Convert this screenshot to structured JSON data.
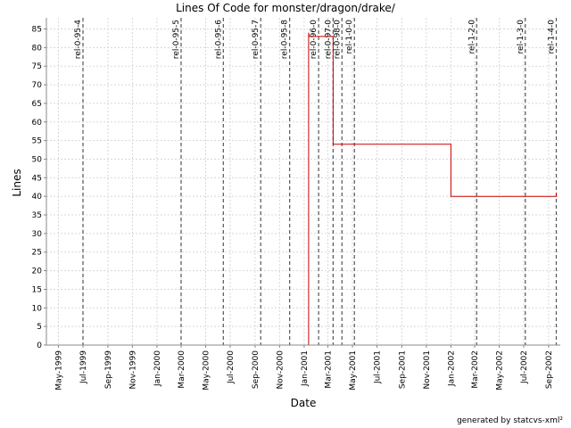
{
  "chart_data": {
    "type": "line",
    "title": "Lines Of Code for monster/dragon/drake/",
    "xlabel": "Date",
    "ylabel": "Lines",
    "ylim": [
      0,
      88
    ],
    "yticks": [
      0,
      5,
      10,
      15,
      20,
      25,
      30,
      35,
      40,
      45,
      50,
      55,
      60,
      65,
      70,
      75,
      80,
      85
    ],
    "xlim": [
      "1999-04-01",
      "2002-09-30"
    ],
    "xticks": [
      {
        "label": "May-1999",
        "date": "1999-05-01"
      },
      {
        "label": "Jul-1999",
        "date": "1999-07-01"
      },
      {
        "label": "Sep-1999",
        "date": "1999-09-01"
      },
      {
        "label": "Nov-1999",
        "date": "1999-11-01"
      },
      {
        "label": "Jan-2000",
        "date": "2000-01-01"
      },
      {
        "label": "Mar-2000",
        "date": "2000-03-01"
      },
      {
        "label": "May-2000",
        "date": "2000-05-01"
      },
      {
        "label": "Jul-2000",
        "date": "2000-07-01"
      },
      {
        "label": "Sep-2000",
        "date": "2000-09-01"
      },
      {
        "label": "Nov-2000",
        "date": "2000-11-01"
      },
      {
        "label": "Jan-2001",
        "date": "2001-01-01"
      },
      {
        "label": "Mar-2001",
        "date": "2001-03-01"
      },
      {
        "label": "May-2001",
        "date": "2001-05-01"
      },
      {
        "label": "Jul-2001",
        "date": "2001-07-01"
      },
      {
        "label": "Sep-2001",
        "date": "2001-09-01"
      },
      {
        "label": "Nov-2001",
        "date": "2001-11-01"
      },
      {
        "label": "Jan-2002",
        "date": "2002-01-01"
      },
      {
        "label": "Mar-2002",
        "date": "2002-03-01"
      },
      {
        "label": "May-2002",
        "date": "2002-05-01"
      },
      {
        "label": "Jul-2002",
        "date": "2002-07-01"
      },
      {
        "label": "Sep-2002",
        "date": "2002-09-01"
      }
    ],
    "grid": true,
    "series": [
      {
        "color": "#cc0000",
        "step": true,
        "points": [
          {
            "x": "1999-04-01",
            "y": 0
          },
          {
            "x": "2001-01-12",
            "y": 0
          },
          {
            "x": "2001-01-12",
            "y": 84
          },
          {
            "x": "2001-01-13",
            "y": 83
          },
          {
            "x": "2001-03-14",
            "y": 83
          },
          {
            "x": "2001-03-14",
            "y": 54
          },
          {
            "x": "2002-01-01",
            "y": 54
          },
          {
            "x": "2002-01-01",
            "y": 40
          },
          {
            "x": "2002-09-20",
            "y": 40
          },
          {
            "x": "2002-09-20",
            "y": 41
          }
        ]
      }
    ],
    "releases": [
      {
        "label": "rel-0-95-4",
        "date": "1999-07-01"
      },
      {
        "label": "rel-0-95-5",
        "date": "2000-03-01"
      },
      {
        "label": "rel-0-95-6",
        "date": "2000-06-14"
      },
      {
        "label": "rel-0-95-7",
        "date": "2000-09-15"
      },
      {
        "label": "rel-0-95-8",
        "date": "2000-11-26"
      },
      {
        "label": "rel-0-96-0",
        "date": "2001-02-06"
      },
      {
        "label": "rel-0-97-0",
        "date": "2001-03-14"
      },
      {
        "label": "rel-0-98-0",
        "date": "2001-04-05"
      },
      {
        "label": "rel-1-0-0",
        "date": "2001-05-06"
      },
      {
        "label": "rel-1-2-0",
        "date": "2002-03-06"
      },
      {
        "label": "rel-1-3-0",
        "date": "2002-07-05"
      },
      {
        "label": "rel-1-4-0",
        "date": "2002-09-20"
      }
    ],
    "footer": "generated by statcvs-xml²"
  }
}
